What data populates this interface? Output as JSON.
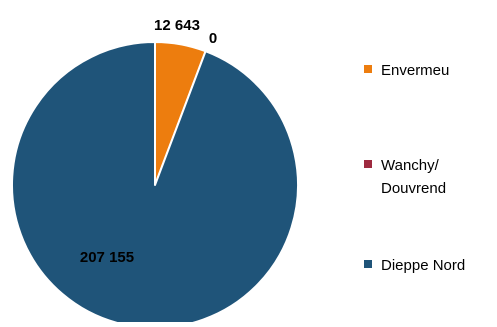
{
  "chart_data": {
    "type": "pie",
    "title": "",
    "slices": [
      {
        "name": "Envermeu",
        "value": 12643,
        "label": "12 643",
        "color": "#ED7D0E"
      },
      {
        "name": "Wanchy/ Douvrend",
        "value": 0,
        "label": "0",
        "color": "#9E2A3F"
      },
      {
        "name": "Dieppe Nord",
        "value": 207155,
        "label": "207 155",
        "color": "#1F5479"
      }
    ],
    "legend": {
      "placement": "right",
      "entries": [
        {
          "lines": [
            "Envermeu"
          ],
          "color": "#ED7D0E"
        },
        {
          "lines": [
            "Wanchy/",
            "Douvrend"
          ],
          "color": "#9E2A3F"
        },
        {
          "lines": [
            "Dieppe Nord"
          ],
          "color": "#1F5479"
        }
      ]
    }
  }
}
